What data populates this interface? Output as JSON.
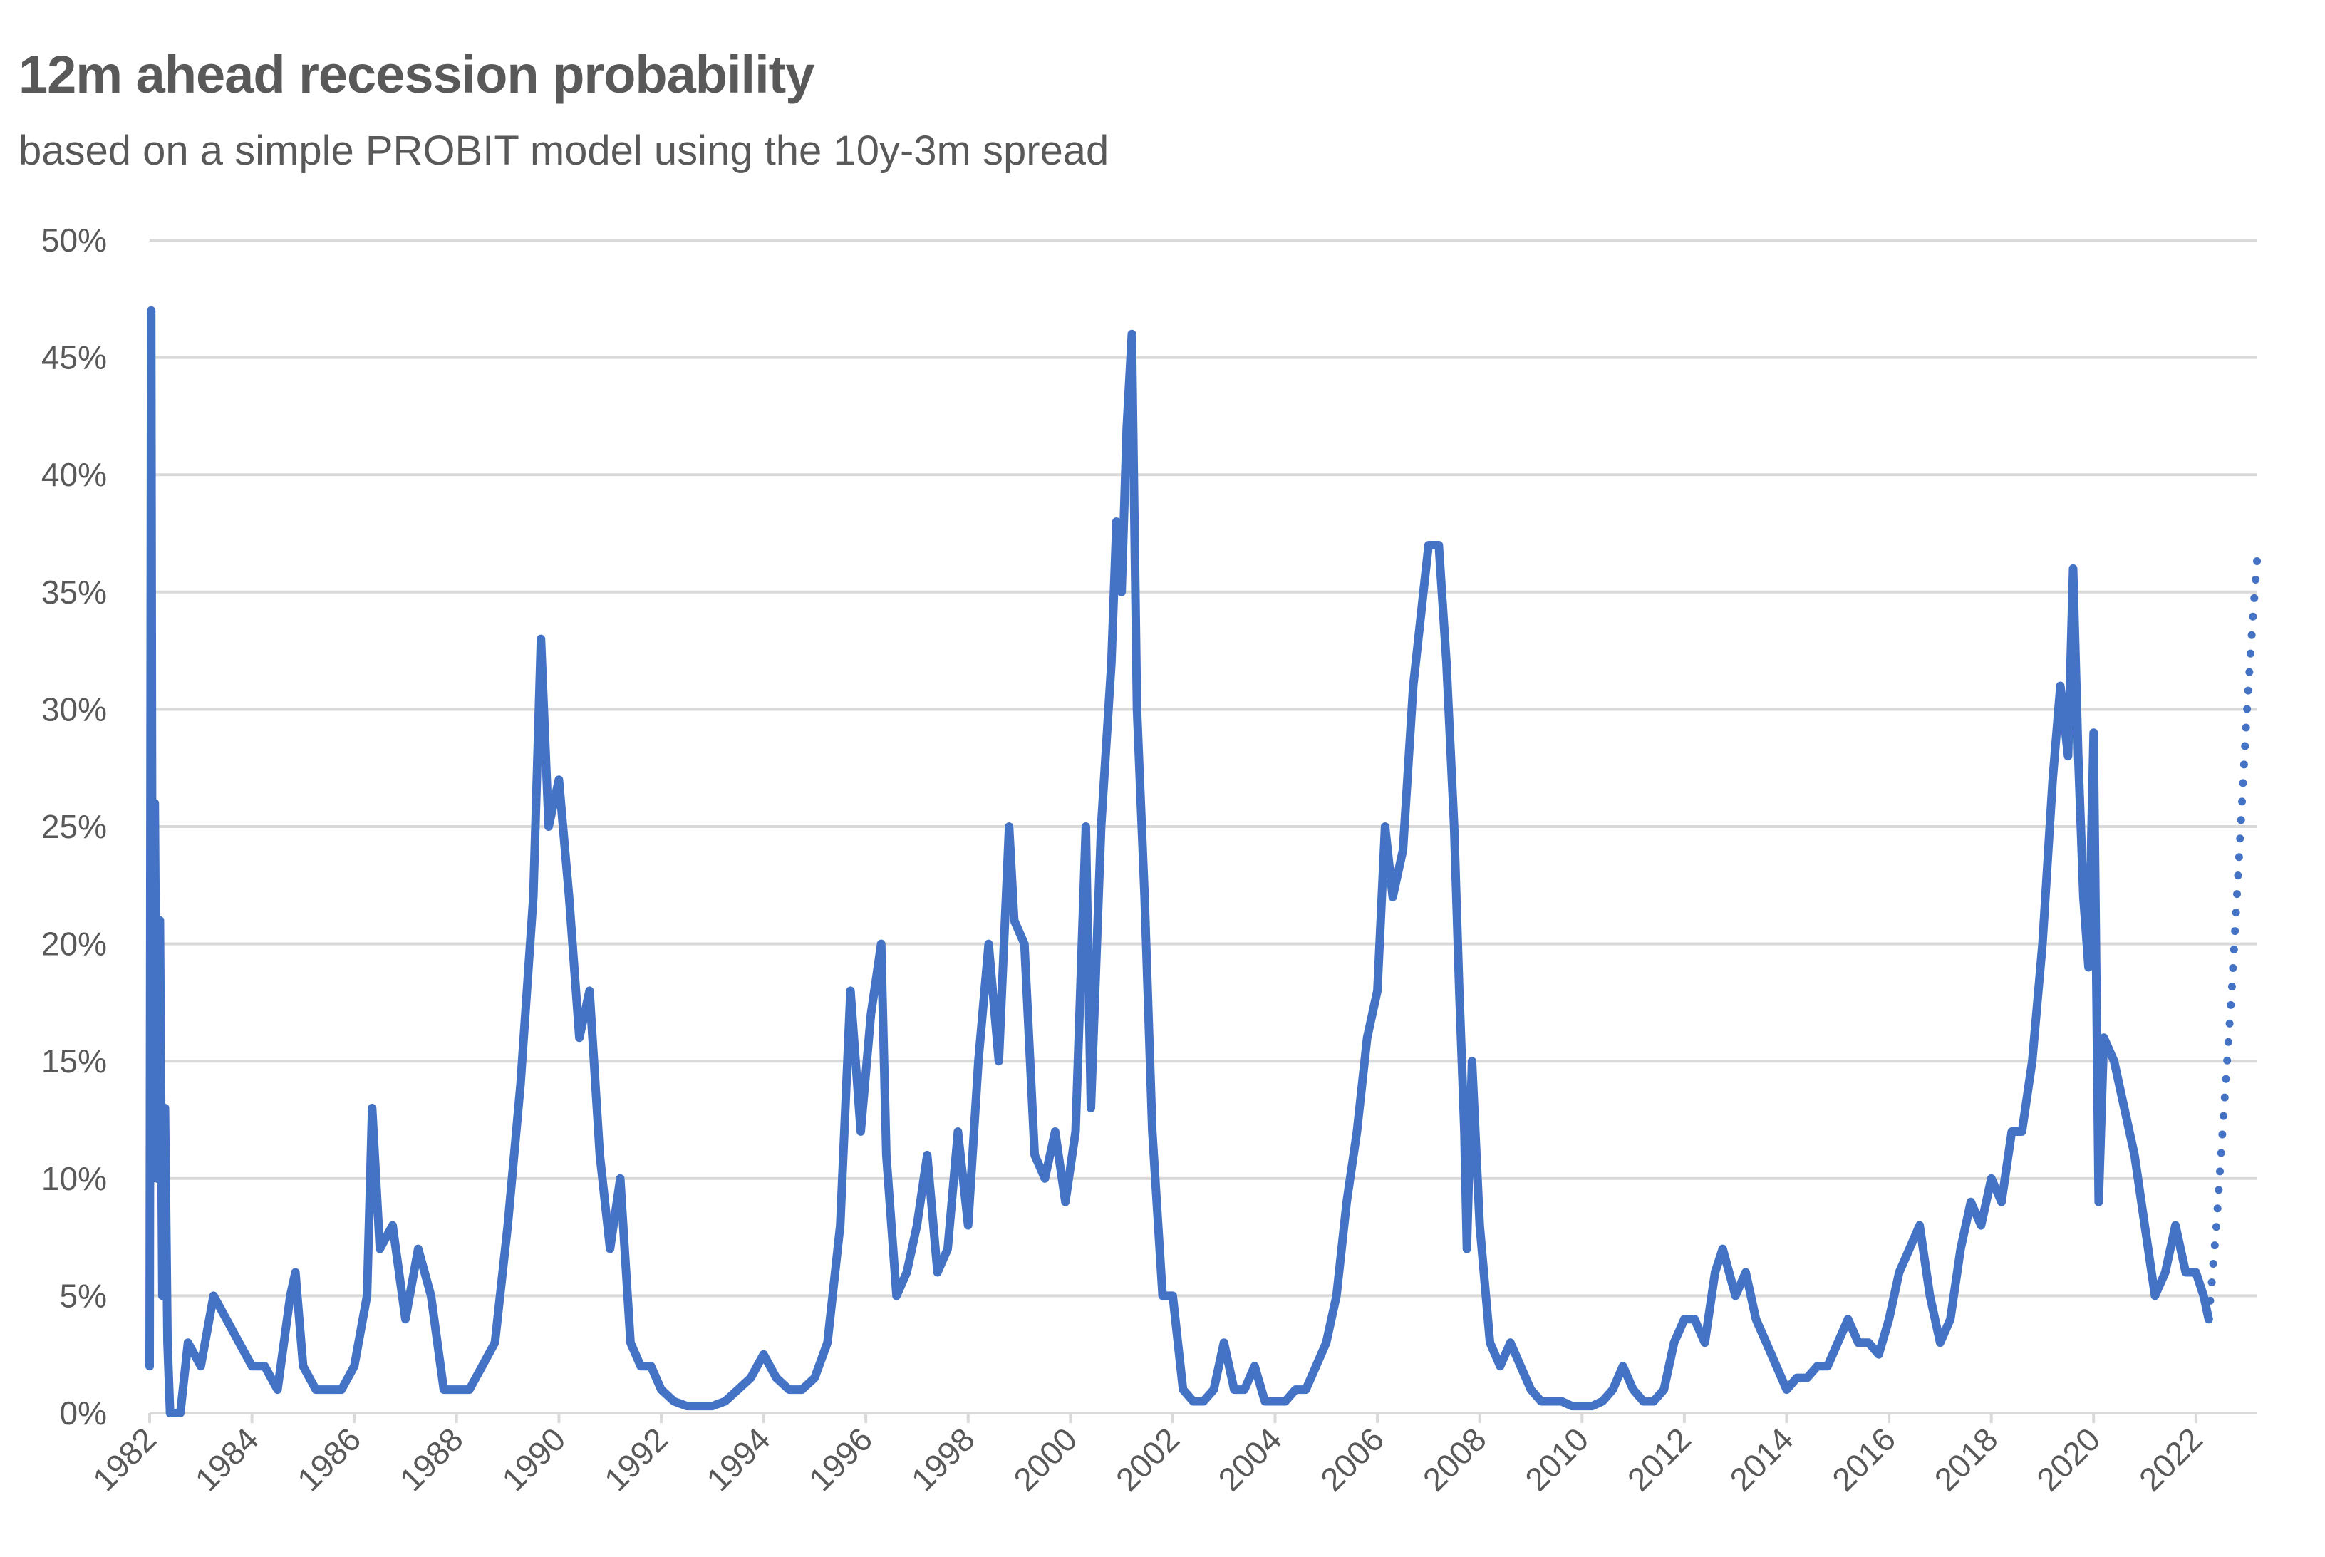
{
  "chart_data": {
    "type": "line",
    "title": "12m ahead recession probability",
    "subtitle": "based on a simple PROBIT model using the 10y-3m spread",
    "xlabel": "",
    "ylabel": "",
    "xlim": [
      1982,
      2023.2
    ],
    "ylim": [
      0,
      50
    ],
    "grid": true,
    "legend": "none",
    "x_ticks": [
      "1982",
      "1984",
      "1986",
      "1988",
      "1990",
      "1992",
      "1994",
      "1996",
      "1998",
      "2000",
      "2002",
      "2004",
      "2006",
      "2008",
      "2010",
      "2012",
      "2014",
      "2016",
      "2018",
      "2020",
      "2022"
    ],
    "y_ticks": [
      "0%",
      "5%",
      "10%",
      "15%",
      "20%",
      "25%",
      "30%",
      "35%",
      "40%",
      "45%",
      "50%"
    ],
    "colors": {
      "line": "#4472C4",
      "grid": "#D9D9D9",
      "text": "#595959"
    },
    "series": [
      {
        "style": "solid",
        "x": [
          1982.0,
          1982.03,
          1982.06,
          1982.1,
          1982.15,
          1982.2,
          1982.25,
          1982.3,
          1982.35,
          1982.4,
          1982.5,
          1982.6,
          1982.75,
          1983.0,
          1983.25,
          1983.5,
          1983.75,
          1984.0,
          1984.25,
          1984.5,
          1984.75,
          1984.85,
          1985.0,
          1985.25,
          1985.5,
          1985.75,
          1986.0,
          1986.25,
          1986.35,
          1986.5,
          1986.75,
          1987.0,
          1987.25,
          1987.5,
          1987.75,
          1988.0,
          1988.25,
          1988.5,
          1988.75,
          1989.0,
          1989.25,
          1989.5,
          1989.65,
          1989.8,
          1990.0,
          1990.2,
          1990.4,
          1990.6,
          1990.8,
          1991.0,
          1991.2,
          1991.4,
          1991.6,
          1991.8,
          1992.0,
          1992.25,
          1992.5,
          1992.75,
          1993.0,
          1993.25,
          1993.5,
          1993.75,
          1994.0,
          1994.25,
          1994.5,
          1994.75,
          1995.0,
          1995.25,
          1995.5,
          1995.7,
          1995.9,
          1996.1,
          1996.3,
          1996.4,
          1996.6,
          1996.8,
          1997.0,
          1997.2,
          1997.4,
          1997.6,
          1997.8,
          1998.0,
          1998.2,
          1998.4,
          1998.6,
          1998.8,
          1998.9,
          1999.1,
          1999.3,
          1999.5,
          1999.7,
          1999.9,
          2000.1,
          2000.3,
          2000.4,
          2000.6,
          2000.8,
          2000.9,
          2001.0,
          2001.1,
          2001.2,
          2001.3,
          2001.45,
          2001.6,
          2001.8,
          2002.0,
          2002.2,
          2002.4,
          2002.6,
          2002.8,
          2003.0,
          2003.2,
          2003.4,
          2003.6,
          2003.8,
          2004.0,
          2004.2,
          2004.4,
          2004.6,
          2004.8,
          2005.0,
          2005.2,
          2005.4,
          2005.6,
          2005.8,
          2006.0,
          2006.15,
          2006.3,
          2006.5,
          2006.7,
          2006.9,
          2007.0,
          2007.2,
          2007.35,
          2007.5,
          2007.6,
          2007.7,
          2007.75,
          2007.85,
          2008.0,
          2008.2,
          2008.4,
          2008.6,
          2008.8,
          2009.0,
          2009.2,
          2009.4,
          2009.6,
          2009.8,
          2010.0,
          2010.2,
          2010.4,
          2010.6,
          2010.8,
          2011.0,
          2011.2,
          2011.4,
          2011.6,
          2011.8,
          2012.0,
          2012.2,
          2012.4,
          2012.6,
          2012.75,
          2013.0,
          2013.2,
          2013.4,
          2013.6,
          2013.8,
          2014.0,
          2014.2,
          2014.4,
          2014.6,
          2014.8,
          2015.0,
          2015.2,
          2015.4,
          2015.6,
          2015.8,
          2016.0,
          2016.2,
          2016.4,
          2016.6,
          2016.8,
          2017.0,
          2017.2,
          2017.4,
          2017.6,
          2017.8,
          2018.0,
          2018.2,
          2018.4,
          2018.6,
          2018.8,
          2019.0,
          2019.2,
          2019.35,
          2019.5,
          2019.6,
          2019.7,
          2019.8,
          2019.9,
          2020.0,
          2020.1,
          2020.2,
          2020.4,
          2020.6,
          2020.8,
          2021.0,
          2021.2,
          2021.4,
          2021.6,
          2021.8,
          2022.0,
          2022.15,
          2022.25
        ],
        "y": [
          2,
          47,
          10,
          26,
          10,
          21,
          5,
          13,
          3,
          0,
          0,
          0,
          3,
          2,
          5,
          4,
          3,
          2,
          2,
          1,
          5,
          6,
          2,
          1,
          1,
          1,
          2,
          5,
          13,
          7,
          8,
          4,
          7,
          5,
          1,
          1,
          1,
          2,
          3,
          8,
          14,
          22,
          33,
          25,
          27,
          22,
          16,
          18,
          11,
          7,
          10,
          3,
          2,
          2,
          1,
          0.5,
          0.3,
          0.3,
          0.3,
          0.5,
          1,
          1.5,
          2.5,
          1.5,
          1,
          1,
          1.5,
          3,
          8,
          18,
          12,
          17,
          20,
          11,
          5,
          6,
          8,
          11,
          6,
          7,
          12,
          8,
          15,
          20,
          15,
          25,
          21,
          20,
          11,
          10,
          12,
          9,
          12,
          25,
          13,
          25,
          32,
          38,
          35,
          42,
          46,
          30,
          22,
          12,
          5,
          5,
          1,
          0.5,
          0.5,
          1,
          3,
          1,
          1,
          2,
          0.5,
          0.5,
          0.5,
          1,
          1,
          2,
          3,
          5,
          9,
          12,
          16,
          18,
          25,
          22,
          24,
          31,
          35,
          37,
          37,
          32,
          25,
          18,
          12,
          7,
          15,
          8,
          3,
          2,
          3,
          2,
          1,
          0.5,
          0.5,
          0.5,
          0.3,
          0.3,
          0.3,
          0.5,
          1,
          2,
          1,
          0.5,
          0.5,
          1,
          3,
          4,
          4,
          3,
          6,
          7,
          5,
          6,
          4,
          3,
          2,
          1,
          1.5,
          1.5,
          2,
          2,
          3,
          4,
          3,
          3,
          2.5,
          4,
          6,
          7,
          8,
          5,
          3,
          4,
          7,
          9,
          8,
          10,
          9,
          12,
          12,
          15,
          20,
          27,
          31,
          28,
          36,
          28,
          22,
          19,
          29,
          9,
          16,
          15,
          13,
          11,
          8,
          5,
          6,
          8,
          6,
          6,
          5,
          4
        ]
      },
      {
        "style": "dotted",
        "x": [
          2022.25,
          2022.4,
          2022.55,
          2022.7,
          2022.85,
          2023.0,
          2023.1,
          2023.2
        ],
        "y": [
          4,
          8,
          13,
          18,
          24,
          30,
          33.5,
          36.5
        ]
      }
    ]
  }
}
